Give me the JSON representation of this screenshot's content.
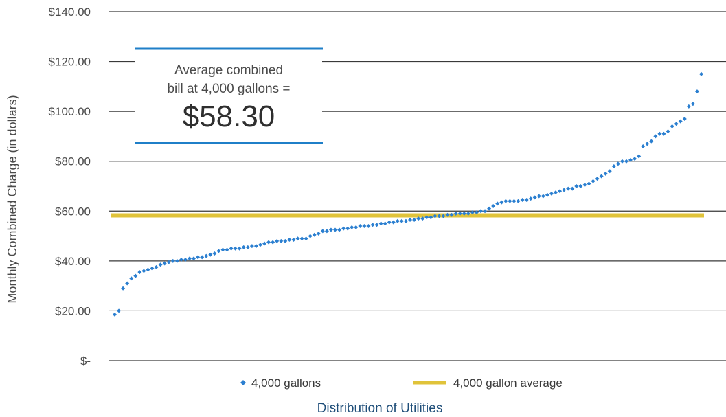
{
  "chart_data": {
    "type": "scatter",
    "ylabel": "Monthly Combined Charge (in dollars)",
    "xlabel": "Distribution of Utilities",
    "ylim": [
      0,
      140
    ],
    "yticks": [
      {
        "value": 140,
        "label": "$140.00"
      },
      {
        "value": 120,
        "label": "$120.00"
      },
      {
        "value": 100,
        "label": "$100.00"
      },
      {
        "value": 80,
        "label": "$80.00"
      },
      {
        "value": 60,
        "label": "$60.00"
      },
      {
        "value": 40,
        "label": "$40.00"
      },
      {
        "value": 20,
        "label": "$20.00"
      },
      {
        "value": 0,
        "label": "$-"
      }
    ],
    "grid": true,
    "legend_position": "bottom",
    "series": [
      {
        "name": "4,000 gallons",
        "color": "#2b7fd0",
        "marker": "diamond",
        "values": [
          18.5,
          20,
          29,
          31,
          33,
          34,
          35.5,
          36,
          36.5,
          37,
          37.5,
          38.5,
          39,
          39.5,
          40,
          40,
          40.5,
          40.5,
          41,
          41,
          41.5,
          41.5,
          42,
          42.5,
          43,
          44,
          44.5,
          44.5,
          45,
          45,
          45,
          45.5,
          45.5,
          46,
          46,
          46.5,
          47,
          47.5,
          47.5,
          48,
          48,
          48,
          48.5,
          48.5,
          49,
          49,
          49,
          50,
          50.5,
          51,
          52,
          52,
          52.5,
          52.5,
          52.5,
          53,
          53,
          53.5,
          53.5,
          54,
          54,
          54,
          54.5,
          54.5,
          55,
          55,
          55.5,
          55.5,
          56,
          56,
          56,
          56.5,
          56.5,
          57,
          57,
          57.5,
          57.5,
          58,
          58,
          58,
          58.5,
          58.5,
          59,
          59,
          59,
          59,
          59.5,
          59.5,
          60,
          60,
          61,
          62,
          63,
          63.5,
          64,
          64,
          64,
          64,
          64.5,
          64.5,
          65,
          65.5,
          66,
          66,
          66.5,
          67,
          67.5,
          68,
          68.5,
          69,
          69,
          70,
          70,
          70.5,
          71,
          72,
          73,
          74,
          75,
          76,
          78,
          79,
          80,
          80,
          80.5,
          81,
          82,
          86,
          87,
          88,
          90,
          91,
          91,
          92,
          94,
          95,
          96,
          97,
          102,
          103,
          108,
          115
        ]
      },
      {
        "name": "4,000 gallon average",
        "color": "#e0c33a",
        "type": "hline",
        "value": 58.3
      }
    ]
  },
  "callout": {
    "line1": "Average combined",
    "line2": "bill at 4,000 gallons =",
    "value": "$58.30"
  },
  "colors": {
    "grid": "#3a3a3a",
    "callout_rule": "#1f7fc8",
    "series_points": "#2b7fd0",
    "average_line": "#e0c33a"
  }
}
